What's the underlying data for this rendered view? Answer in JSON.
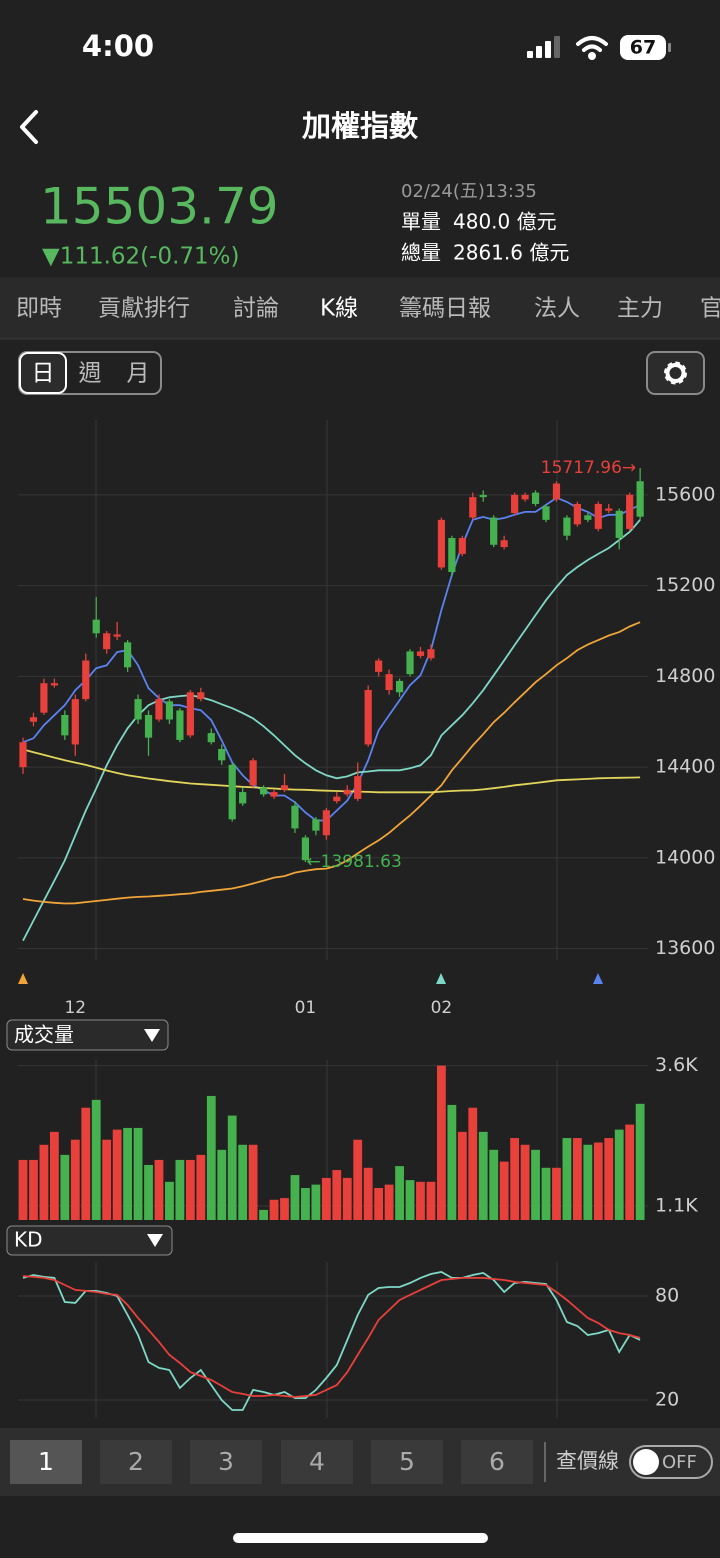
{
  "status_bar": {
    "time": "4:00",
    "battery": "67"
  },
  "header": {
    "title": "加權指數"
  },
  "quote": {
    "price": "15503.79",
    "change": "▼111.62(-0.71%)",
    "datetime": "02/24(五)13:35",
    "unit_volume_label": "單量",
    "unit_volume": "480.0 億元",
    "total_volume_label": "總量",
    "total_volume": "2861.6 億元"
  },
  "tabs": [
    "即時",
    "貢獻排行",
    "討論",
    "K線",
    "籌碼日報",
    "法人",
    "主力",
    "官"
  ],
  "period_tabs": [
    "日",
    "週",
    "月"
  ],
  "chart_data": [
    {
      "type": "candlestick",
      "categories": [
        null,
        null,
        null,
        null,
        null,
        "12",
        null,
        null,
        null,
        null,
        null,
        null,
        null,
        null,
        null,
        null,
        null,
        null,
        null,
        null,
        null,
        null,
        null,
        null,
        null,
        null,
        null,
        "01",
        null,
        null,
        null,
        null,
        null,
        null,
        null,
        null,
        null,
        null,
        null,
        null,
        "02",
        null,
        null,
        null,
        null,
        null,
        null,
        null,
        null,
        null,
        null,
        null,
        null,
        null,
        null,
        null,
        null,
        null,
        null,
        null
      ],
      "open": [
        14400,
        14600,
        14640,
        14760,
        14630,
        14500,
        14700,
        15050,
        14920,
        14975,
        14950,
        14700,
        14630,
        14610,
        14690,
        14650,
        14540,
        14700,
        14550,
        14480,
        14410,
        14290,
        14320,
        14310,
        14270,
        14300,
        14230,
        14090,
        14170,
        14100,
        14250,
        14280,
        14260,
        14500,
        14820,
        14740,
        14780,
        14910,
        14890,
        14880,
        15280,
        15410,
        15340,
        15500,
        15600,
        15500,
        15370,
        15520,
        15580,
        15610,
        15550,
        15580,
        15500,
        15470,
        15510,
        15450,
        15530,
        15530,
        15450,
        15660
      ],
      "high": [
        14530,
        14640,
        14790,
        14790,
        14650,
        14720,
        14900,
        15150,
        15000,
        15040,
        14960,
        14720,
        14650,
        14720,
        14700,
        14660,
        14740,
        14750,
        14570,
        14500,
        14420,
        14310,
        14440,
        14320,
        14300,
        14370,
        14250,
        14100,
        14180,
        14220,
        14290,
        14320,
        14420,
        14760,
        14880,
        14830,
        14790,
        14920,
        14930,
        14940,
        15500,
        15420,
        15420,
        15610,
        15620,
        15510,
        15420,
        15610,
        15610,
        15620,
        15560,
        15660,
        15510,
        15570,
        15520,
        15570,
        15560,
        15540,
        15610,
        15717.96
      ],
      "low": [
        14370,
        14580,
        14630,
        14750,
        14520,
        14450,
        14690,
        14970,
        14900,
        14960,
        14820,
        14590,
        14450,
        14600,
        14590,
        14510,
        14530,
        14690,
        14500,
        14410,
        14160,
        14230,
        14310,
        14270,
        14260,
        14290,
        14110,
        13981.63,
        14100,
        14080,
        14240,
        14270,
        14250,
        14490,
        14800,
        14720,
        14710,
        14800,
        14880,
        14870,
        15270,
        15240,
        15330,
        15490,
        15570,
        15370,
        15360,
        15510,
        15570,
        15550,
        15480,
        15570,
        15400,
        15460,
        15480,
        15440,
        15520,
        15360,
        15440,
        15490
      ],
      "close": [
        14510,
        14620,
        14770,
        14770,
        14540,
        14700,
        14870,
        14990,
        14990,
        14985,
        14840,
        14610,
        14530,
        14700,
        14610,
        14520,
        14730,
        14730,
        14510,
        14430,
        14170,
        14240,
        14430,
        14280,
        14290,
        14320,
        14130,
        13990,
        14120,
        14210,
        14270,
        14300,
        14360,
        14740,
        14870,
        14810,
        14730,
        14810,
        14910,
        14920,
        15490,
        15260,
        15410,
        15590,
        15590,
        15380,
        15400,
        15600,
        15600,
        15560,
        15490,
        15650,
        15420,
        15560,
        15490,
        15560,
        15540,
        15410,
        15600,
        15503.79
      ],
      "up_color": "#e8403a",
      "down_color": "#45b24f",
      "moving_averages": [
        {
          "color": "#5b82f0",
          "values": [
            14510,
            14527,
            14585,
            14629,
            14673,
            14739,
            14783,
            14836,
            14849,
            14907,
            14916,
            14849,
            14748,
            14704,
            14673,
            14673,
            14660,
            14651,
            14607,
            14518,
            14421,
            14364,
            14320,
            14298,
            14275,
            14275,
            14245,
            14200,
            14165,
            14165,
            14209,
            14253,
            14328,
            14430,
            14562,
            14629,
            14695,
            14761,
            14805,
            14916,
            15092,
            15247,
            15379,
            15490,
            15503,
            15490,
            15498,
            15512,
            15525,
            15525,
            15556,
            15587,
            15569,
            15543,
            15525,
            15498,
            15512,
            15512,
            15534,
            15556
          ]
        },
        {
          "color": "#7fd8c6",
          "values": [
            13635,
            13724,
            13812,
            13900,
            13989,
            14099,
            14209,
            14306,
            14408,
            14496,
            14571,
            14629,
            14673,
            14695,
            14708,
            14713,
            14717,
            14708,
            14695,
            14677,
            14660,
            14638,
            14615,
            14580,
            14540,
            14496,
            14452,
            14417,
            14386,
            14364,
            14351,
            14359,
            14377,
            14381,
            14386,
            14386,
            14386,
            14395,
            14408,
            14452,
            14540,
            14585,
            14629,
            14682,
            14739,
            14805,
            14871,
            14938,
            15004,
            15070,
            15136,
            15194,
            15247,
            15282,
            15313,
            15340,
            15366,
            15401,
            15437,
            15490
          ]
        },
        {
          "color": "#f0a43a",
          "values": [
            13819,
            13812,
            13806,
            13802,
            13799,
            13800,
            13805,
            13810,
            13815,
            13820,
            13825,
            13828,
            13830,
            13833,
            13836,
            13840,
            13843,
            13850,
            13855,
            13860,
            13865,
            13875,
            13887,
            13900,
            13913,
            13920,
            13935,
            13943,
            13950,
            13953,
            13965,
            13989,
            14020,
            14050,
            14077,
            14110,
            14150,
            14187,
            14230,
            14275,
            14320,
            14386,
            14440,
            14496,
            14545,
            14598,
            14640,
            14686,
            14730,
            14774,
            14810,
            14849,
            14880,
            14916,
            14940,
            14960,
            14980,
            14995,
            15020,
            15039
          ]
        },
        {
          "color": "#e3d55c",
          "values": [
            14478,
            14466,
            14454,
            14442,
            14430,
            14420,
            14410,
            14398,
            14385,
            14374,
            14364,
            14357,
            14350,
            14344,
            14338,
            14333,
            14328,
            14325,
            14322,
            14319,
            14316,
            14313,
            14311,
            14308,
            14306,
            14303,
            14301,
            14300,
            14298,
            14296,
            14295,
            14293,
            14292,
            14291,
            14289,
            14289,
            14289,
            14289,
            14289,
            14289,
            14292,
            14295,
            14297,
            14298,
            14302,
            14307,
            14313,
            14320,
            14325,
            14330,
            14336,
            14342,
            14344,
            14346,
            14348,
            14351,
            14352,
            14353,
            14354,
            14355
          ]
        }
      ],
      "max_label": "15717.96→",
      "min_label": "←13981.63",
      "ylim": [
        13550,
        15930
      ],
      "yticks": [
        13600,
        14000,
        14400,
        14800,
        15200,
        15600
      ],
      "grid": true
    },
    {
      "type": "bar",
      "title": "成交量",
      "values": [
        1.92,
        1.92,
        2.19,
        2.42,
        2.01,
        2.28,
        2.85,
        2.99,
        2.28,
        2.46,
        2.49,
        2.49,
        1.83,
        1.92,
        1.53,
        1.92,
        1.92,
        2.01,
        3.06,
        2.1,
        2.71,
        2.19,
        2.19,
        1.03,
        1.21,
        1.24,
        1.65,
        1.42,
        1.48,
        1.6,
        1.74,
        1.6,
        2.28,
        1.78,
        1.42,
        1.48,
        1.81,
        1.56,
        1.53,
        1.53,
        3.6,
        2.9,
        2.42,
        2.85,
        2.42,
        2.1,
        1.89,
        2.31,
        2.19,
        2.1,
        1.78,
        1.78,
        2.31,
        2.31,
        2.19,
        2.23,
        2.31,
        2.46,
        2.55,
        2.92
      ],
      "ylim": [
        0.85,
        3.7
      ],
      "yticks": [
        {
          "value": 3.6,
          "label": "3.6K"
        },
        {
          "value": 1.1,
          "label": "1.1K"
        }
      ],
      "grid": true
    },
    {
      "type": "line",
      "title": "KD",
      "series": [
        {
          "color": "#7fd8c6",
          "values": [
            90.4,
            92.1,
            91.0,
            90.4,
            76.5,
            76.0,
            82.9,
            82.9,
            81.7,
            80.0,
            69.0,
            57.5,
            41.9,
            38.5,
            37.3,
            26.9,
            32.7,
            37.3,
            28.6,
            20.0,
            14.2,
            14.2,
            25.8,
            24.6,
            22.9,
            24.6,
            21.1,
            21.1,
            25.8,
            32.7,
            40.2,
            54.6,
            69.0,
            80.6,
            84.6,
            85.2,
            85.2,
            87.5,
            90.4,
            92.7,
            93.8,
            90.4,
            90.4,
            92.1,
            93.3,
            89.2,
            82.3,
            87.5,
            88.1,
            87.5,
            86.9,
            77.7,
            65.0,
            62.7,
            57.5,
            58.6,
            60.4,
            47.7,
            57.5,
            54.6
          ]
        },
        {
          "color": "#e8403a",
          "values": [
            91.5,
            91.0,
            90.4,
            89.2,
            86.3,
            83.5,
            82.9,
            82.3,
            81.2,
            80.6,
            74.8,
            67.3,
            60.4,
            53.5,
            46.0,
            41.3,
            36.1,
            33.8,
            31.5,
            28.1,
            24.6,
            23.5,
            22.3,
            22.3,
            22.9,
            22.3,
            21.7,
            22.3,
            22.9,
            25.8,
            28.6,
            36.1,
            46.0,
            55.8,
            66.2,
            71.9,
            77.7,
            80.6,
            83.5,
            86.3,
            89.2,
            89.8,
            90.4,
            90.4,
            90.4,
            89.8,
            89.2,
            88.1,
            87.5,
            86.9,
            86.3,
            82.3,
            77.7,
            72.5,
            67.3,
            64.4,
            60.4,
            58.6,
            57.5,
            55.8
          ]
        }
      ],
      "ylim": [
        10,
        100
      ],
      "yticks": [
        80,
        20
      ],
      "grid": true
    }
  ],
  "bottom_bar": {
    "buttons": [
      "1",
      "2",
      "3",
      "4",
      "5",
      "6"
    ],
    "price_line_label": "查價線",
    "toggle": "OFF"
  }
}
